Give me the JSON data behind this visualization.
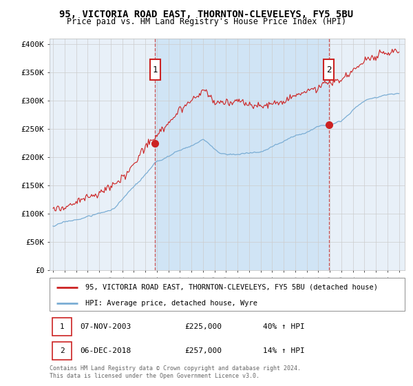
{
  "title": "95, VICTORIA ROAD EAST, THORNTON-CLEVELEYS, FY5 5BU",
  "subtitle": "Price paid vs. HM Land Registry's House Price Index (HPI)",
  "ylim": [
    0,
    410000
  ],
  "yticks": [
    0,
    50000,
    100000,
    150000,
    200000,
    250000,
    300000,
    350000,
    400000
  ],
  "ytick_labels": [
    "£0",
    "£50K",
    "£100K",
    "£150K",
    "£200K",
    "£250K",
    "£300K",
    "£350K",
    "£400K"
  ],
  "xlim_start": 1994.7,
  "xlim_end": 2025.5,
  "plot_bg_color": "#e8f0f8",
  "highlight_bg_color": "#d0e4f5",
  "fig_bg_color": "#ffffff",
  "grid_color": "#cccccc",
  "red_line_color": "#cc2222",
  "blue_line_color": "#7aadd4",
  "marker1_x_year": 2003.85,
  "marker1_y": 225000,
  "marker2_x_year": 2018.92,
  "marker2_y": 257000,
  "legend_line1": "95, VICTORIA ROAD EAST, THORNTON-CLEVELEYS, FY5 5BU (detached house)",
  "legend_line2": "HPI: Average price, detached house, Wyre",
  "annotation1_date": "07-NOV-2003",
  "annotation1_price": "£225,000",
  "annotation1_hpi": "40% ↑ HPI",
  "annotation2_date": "06-DEC-2018",
  "annotation2_price": "£257,000",
  "annotation2_hpi": "14% ↑ HPI",
  "footnote1": "Contains HM Land Registry data © Crown copyright and database right 2024.",
  "footnote2": "This data is licensed under the Open Government Licence v3.0."
}
